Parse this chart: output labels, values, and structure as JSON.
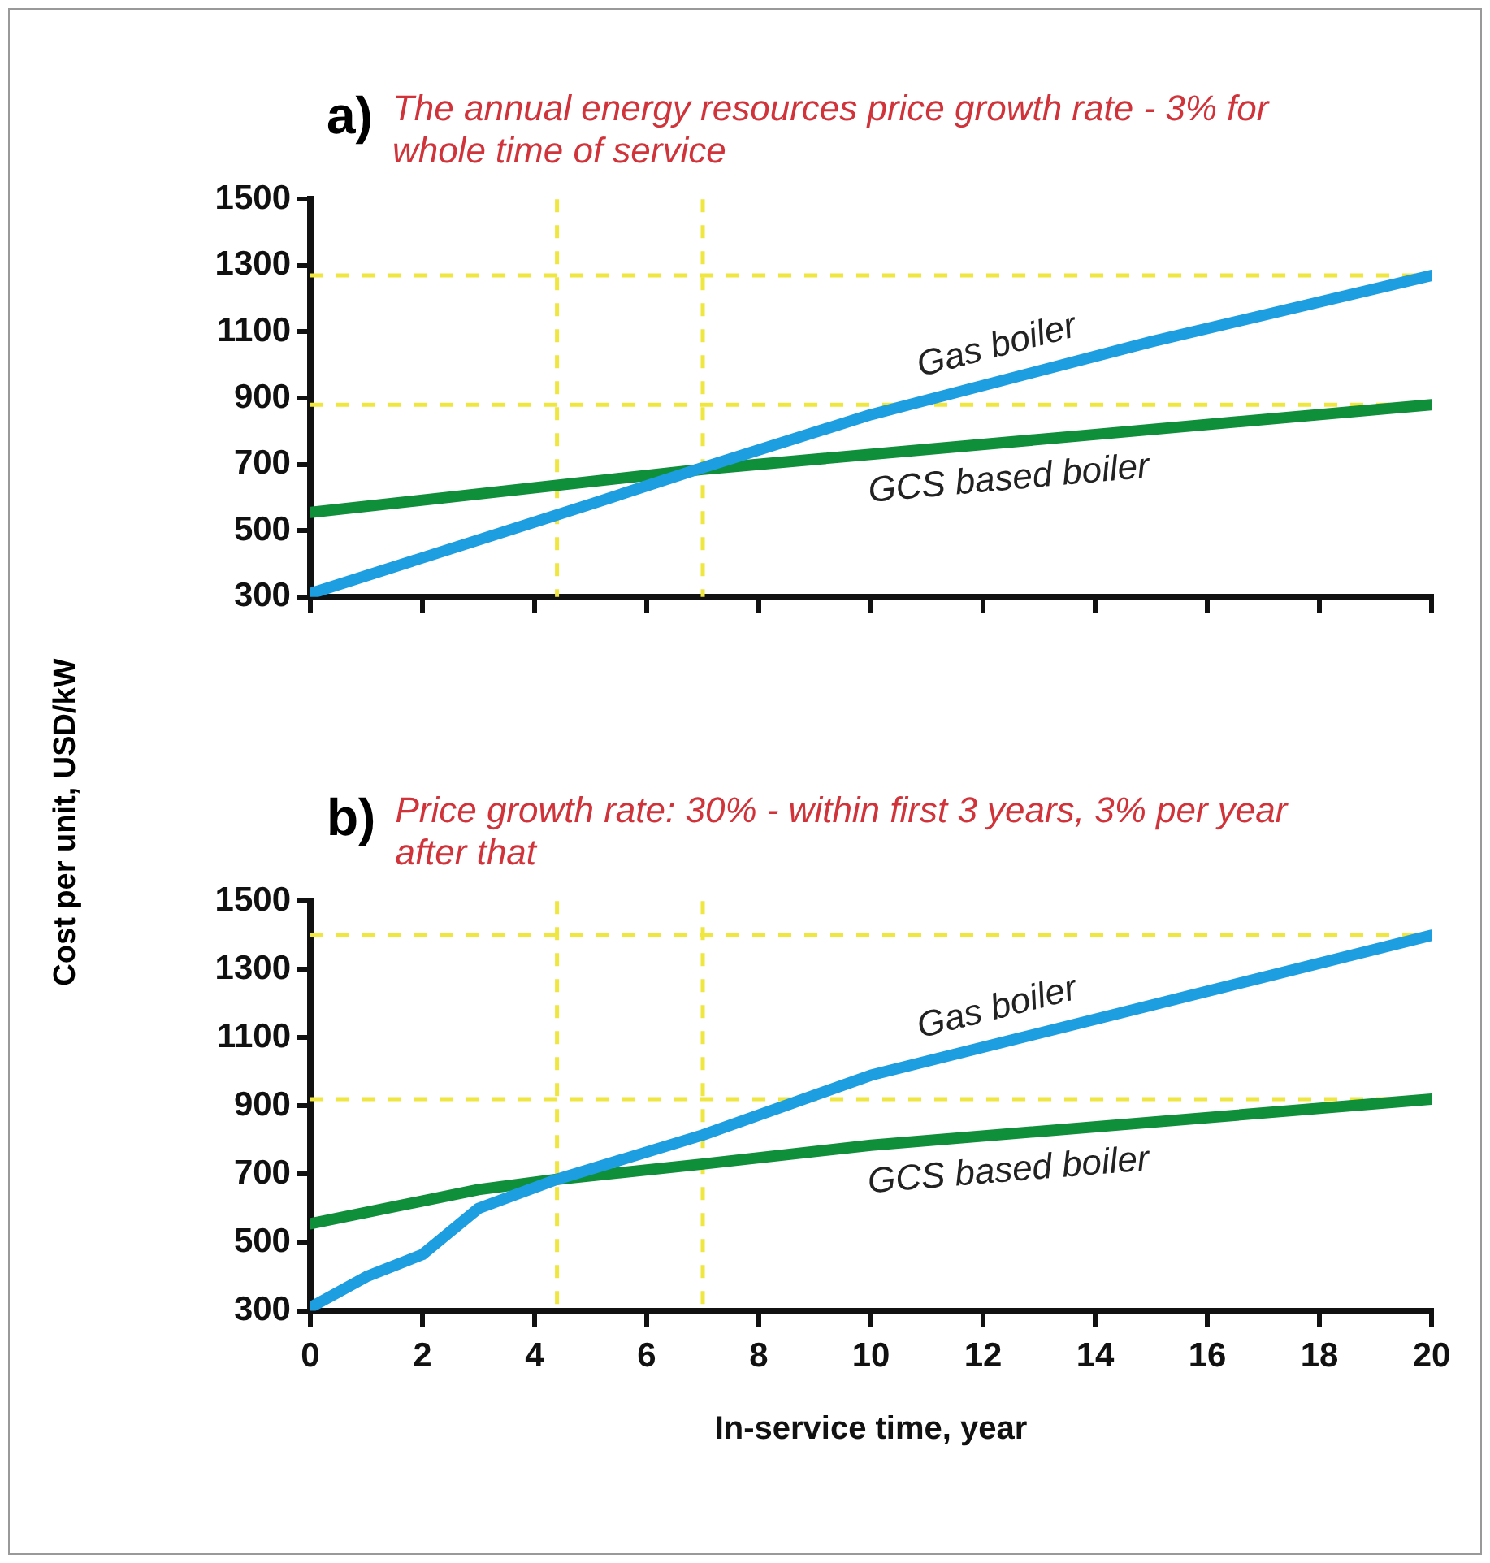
{
  "chart_data": [
    {
      "type": "line",
      "title": "a)",
      "subtitle": "The annual energy resources price growth rate - 3% for whole time of service",
      "ylabel": "Cost per unit, USD/kW",
      "xlim": [
        0,
        20
      ],
      "xticks": [
        0,
        2,
        4,
        6,
        8,
        10,
        12,
        14,
        16,
        18,
        20
      ],
      "ylim": [
        300,
        1500
      ],
      "yticks": [
        300,
        500,
        700,
        900,
        1100,
        1300,
        1500
      ],
      "tick_labels": "y",
      "grid": false,
      "legend": false,
      "series": [
        {
          "name": "Gas boiler",
          "color": "#1c9ee0",
          "x": [
            0,
            5,
            7,
            10,
            15,
            20
          ],
          "values": [
            310,
            580,
            690,
            850,
            1070,
            1270
          ]
        },
        {
          "name": "GCS based boiler",
          "color": "#0f8f3a",
          "x": [
            0,
            7,
            14,
            20
          ],
          "values": [
            555,
            685,
            790,
            880
          ]
        }
      ],
      "ref_lines": [
        {
          "axis": "x",
          "value": 4.4,
          "color": "#f0e640",
          "line_style": "dashed"
        },
        {
          "axis": "x",
          "value": 7,
          "color": "#f0e640",
          "line_style": "dashed"
        },
        {
          "axis": "y",
          "value": 1270,
          "color": "#f0e640",
          "line_style": "dashed"
        },
        {
          "axis": "y",
          "value": 880,
          "color": "#f0e640",
          "line_style": "dashed"
        }
      ]
    },
    {
      "type": "line",
      "title": "b)",
      "subtitle": "Price growth rate: 30% - within first 3 years, 3% per year after that",
      "xlabel": "In-service time, year",
      "xlim": [
        0,
        20
      ],
      "xticks": [
        0,
        2,
        4,
        6,
        8,
        10,
        12,
        14,
        16,
        18,
        20
      ],
      "ylim": [
        300,
        1500
      ],
      "yticks": [
        300,
        500,
        700,
        900,
        1100,
        1300,
        1500
      ],
      "grid": false,
      "legend": false,
      "series": [
        {
          "name": "Gas boiler",
          "color": "#1c9ee0",
          "x": [
            0,
            1,
            2,
            3,
            4.4,
            7,
            10,
            20
          ],
          "values": [
            310,
            400,
            465,
            600,
            685,
            815,
            990,
            1400
          ]
        },
        {
          "name": "GCS based boiler",
          "color": "#0f8f3a",
          "x": [
            0,
            3,
            4.4,
            7,
            10,
            20
          ],
          "values": [
            555,
            655,
            685,
            730,
            785,
            920
          ]
        }
      ],
      "ref_lines": [
        {
          "axis": "x",
          "value": 4.4,
          "color": "#f0e640",
          "line_style": "dashed"
        },
        {
          "axis": "x",
          "value": 7,
          "color": "#f0e640",
          "line_style": "dashed"
        },
        {
          "axis": "y",
          "value": 1400,
          "color": "#f0e640",
          "line_style": "dashed"
        },
        {
          "axis": "y",
          "value": 920,
          "color": "#f0e640",
          "line_style": "dashed"
        }
      ]
    }
  ]
}
